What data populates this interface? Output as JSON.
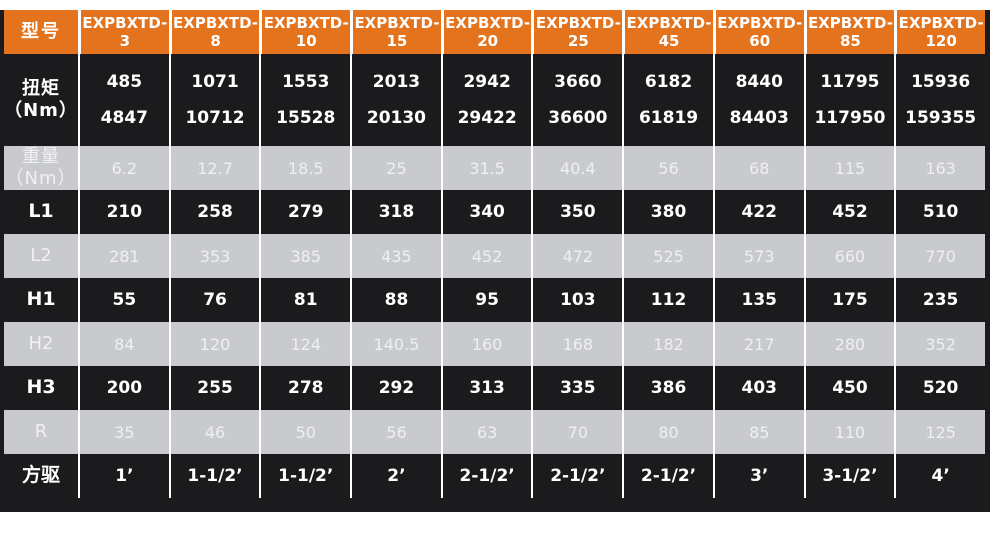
{
  "colors": {
    "accent_orange": "#e4731e",
    "panel_black": "#1b1b1d",
    "stripe_gray": "#c9cacd",
    "separator_white": "#ffffff"
  },
  "table": {
    "header": {
      "label": "型号",
      "models": [
        "EXPBXTD-3",
        "EXPBXTD-8",
        "EXPBXTD-10",
        "EXPBXTD-15",
        "EXPBXTD-20",
        "EXPBXTD-25",
        "EXPBXTD-45",
        "EXPBXTD-60",
        "EXPBXTD-85",
        "EXPBXTD-120"
      ]
    },
    "rows": [
      {
        "name": "torque",
        "label": [
          "扭矩",
          "（Nm）"
        ],
        "top": [
          "485",
          "1071",
          "1553",
          "2013",
          "2942",
          "3660",
          "6182",
          "8440",
          "11795",
          "15936"
        ],
        "bottom": [
          "4847",
          "10712",
          "15528",
          "20130",
          "29422",
          "36600",
          "61819",
          "84403",
          "117950",
          "159355"
        ]
      },
      {
        "name": "weight",
        "label": [
          "重量",
          "（Nm）"
        ],
        "values": [
          "6.2",
          "12.7",
          "18.5",
          "25",
          "31.5",
          "40.4",
          "56",
          "68",
          "115",
          "163"
        ]
      },
      {
        "name": "L1",
        "label": [
          "L1"
        ],
        "values": [
          "210",
          "258",
          "279",
          "318",
          "340",
          "350",
          "380",
          "422",
          "452",
          "510"
        ]
      },
      {
        "name": "L2",
        "label": [
          "L2"
        ],
        "values": [
          "281",
          "353",
          "385",
          "435",
          "452",
          "472",
          "525",
          "573",
          "660",
          "770"
        ]
      },
      {
        "name": "H1",
        "label": [
          "H1"
        ],
        "values": [
          "55",
          "76",
          "81",
          "88",
          "95",
          "103",
          "112",
          "135",
          "175",
          "235"
        ]
      },
      {
        "name": "H2",
        "label": [
          "H2"
        ],
        "values": [
          "84",
          "120",
          "124",
          "140.5",
          "160",
          "168",
          "182",
          "217",
          "280",
          "352"
        ]
      },
      {
        "name": "H3",
        "label": [
          "H3"
        ],
        "values": [
          "200",
          "255",
          "278",
          "292",
          "313",
          "335",
          "386",
          "403",
          "450",
          "520"
        ]
      },
      {
        "name": "R",
        "label": [
          "R"
        ],
        "values": [
          "35",
          "46",
          "50",
          "56",
          "63",
          "70",
          "80",
          "85",
          "110",
          "125"
        ]
      },
      {
        "name": "square-drive",
        "label": [
          "方驱"
        ],
        "values": [
          "1’",
          "1-1/2’",
          "1-1/2’",
          "2’",
          "2-1/2’",
          "2-1/2’",
          "2-1/2’",
          "3’",
          "3-1/2’",
          "4’"
        ]
      }
    ]
  }
}
